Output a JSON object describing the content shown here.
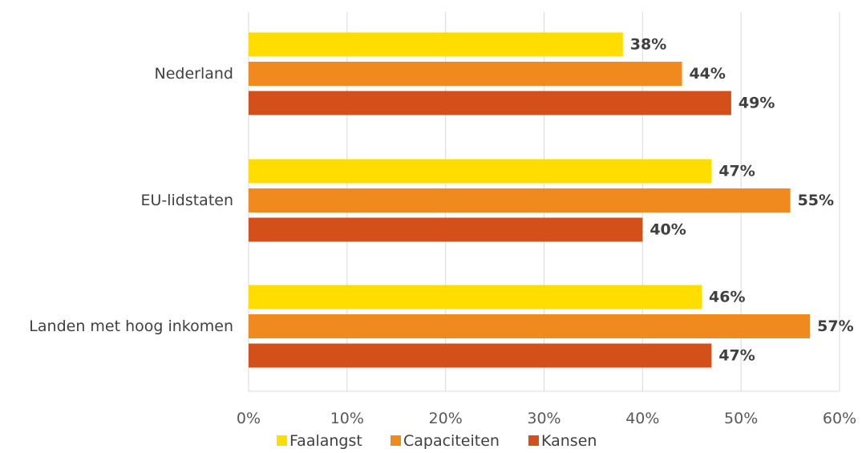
{
  "chart_data": {
    "type": "bar",
    "orientation": "horizontal",
    "categories": [
      "Nederland",
      "EU-lidstaten",
      "Landen met hoog inkomen"
    ],
    "series": [
      {
        "name": "Faalangst",
        "color": "#FFDD00",
        "values": [
          38,
          47,
          46
        ],
        "labels": [
          "38%",
          "47%",
          "46%"
        ]
      },
      {
        "name": "Capaciteiten",
        "color": "#F08A1E",
        "values": [
          44,
          55,
          57
        ],
        "labels": [
          "44%",
          "55%",
          "57%"
        ]
      },
      {
        "name": "Kansen",
        "color": "#D4501A",
        "values": [
          49,
          40,
          47
        ],
        "labels": [
          "49%",
          "40%",
          "47%"
        ]
      }
    ],
    "xlim": [
      0,
      60
    ],
    "xticks": [
      0,
      10,
      20,
      30,
      40,
      50,
      60
    ],
    "xtick_labels": [
      "0%",
      "10%",
      "20%",
      "30%",
      "40%",
      "50%",
      "60%"
    ],
    "grid": true,
    "legend": "bottom",
    "gridline_color": "#D9D9D9"
  }
}
